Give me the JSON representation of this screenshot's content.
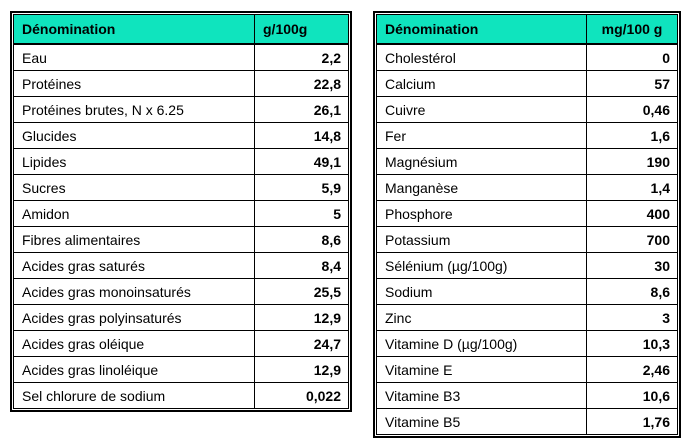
{
  "colors": {
    "header_bg": "#0FE4BE",
    "border": "#000000",
    "text": "#000000",
    "page_bg": "#FFFFFF"
  },
  "left_table": {
    "header": {
      "name": "Dénomination",
      "unit": "g/100g"
    },
    "rows": [
      {
        "label": "Eau",
        "value": "2,2"
      },
      {
        "label": "Protéines",
        "value": "22,8"
      },
      {
        "label": "Protéines brutes, N x 6.25",
        "value": "26,1"
      },
      {
        "label": "Glucides",
        "value": "14,8"
      },
      {
        "label": "Lipides",
        "value": "49,1"
      },
      {
        "label": "Sucres",
        "value": "5,9"
      },
      {
        "label": "Amidon",
        "value": "5"
      },
      {
        "label": "Fibres alimentaires",
        "value": "8,6"
      },
      {
        "label": "Acides gras saturés",
        "value": "8,4"
      },
      {
        "label": "Acides gras monoinsaturés",
        "value": "25,5"
      },
      {
        "label": "Acides gras polyinsaturés",
        "value": "12,9"
      },
      {
        "label": "Acides gras oléique",
        "value": "24,7"
      },
      {
        "label": "Acides gras linoléique",
        "value": "12,9"
      },
      {
        "label": "Sel chlorure de sodium",
        "value": "0,022"
      }
    ]
  },
  "right_table": {
    "header": {
      "name": "Dénomination",
      "unit": "mg/100 g"
    },
    "rows": [
      {
        "label": "Cholestérol",
        "value": "0"
      },
      {
        "label": "Calcium",
        "value": "57"
      },
      {
        "label": "Cuivre",
        "value": "0,46"
      },
      {
        "label": "Fer",
        "value": "1,6"
      },
      {
        "label": "Magnésium",
        "value": "190"
      },
      {
        "label": "Manganèse",
        "value": "1,4"
      },
      {
        "label": "Phosphore",
        "value": "400"
      },
      {
        "label": "Potassium",
        "value": "700"
      },
      {
        "label": "Sélénium (µg/100g)",
        "value": "30"
      },
      {
        "label": "Sodium",
        "value": "8,6"
      },
      {
        "label": "Zinc",
        "value": "3"
      },
      {
        "label": "Vitamine D (µg/100g)",
        "value": "10,3"
      },
      {
        "label": "Vitamine E",
        "value": "2,46"
      },
      {
        "label": "Vitamine B3",
        "value": "10,6"
      },
      {
        "label": "Vitamine B5",
        "value": "1,76"
      }
    ]
  }
}
